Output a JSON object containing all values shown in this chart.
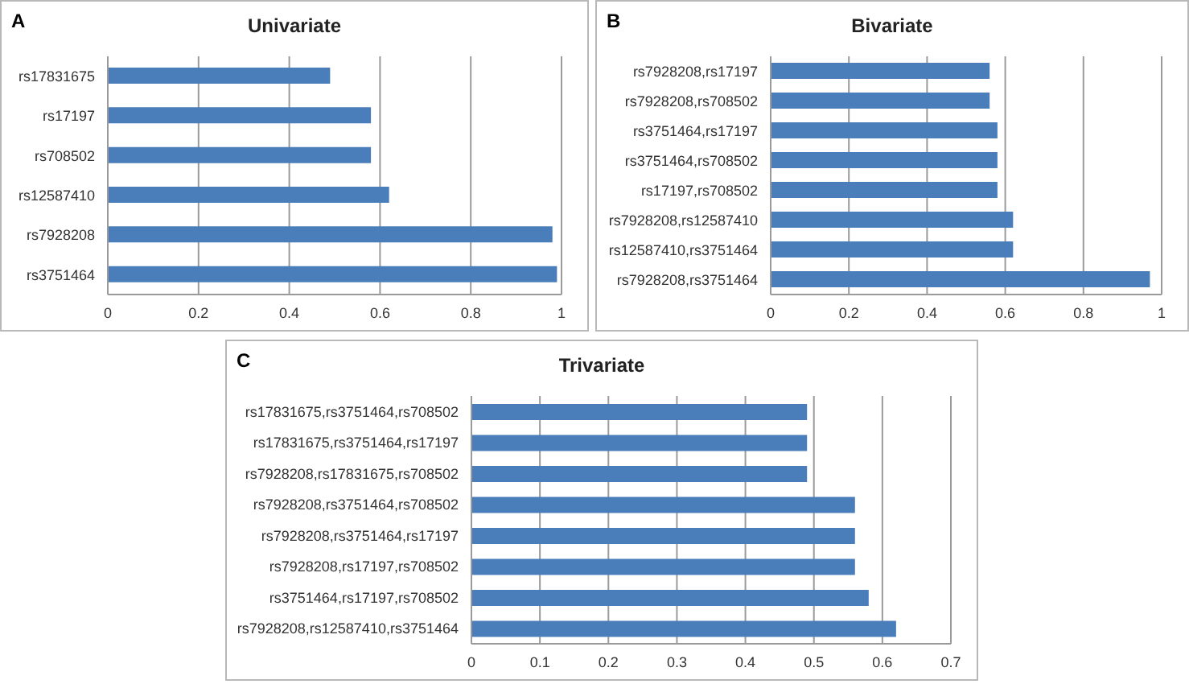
{
  "chart_data": [
    {
      "type": "bar",
      "orientation": "horizontal",
      "title": "Univariate",
      "annotations": [
        "A"
      ],
      "categories": [
        "rs17831675",
        "rs17197",
        "rs708502",
        "rs12587410",
        "rs7928208",
        "rs3751464"
      ],
      "values": [
        0.49,
        0.58,
        0.58,
        0.62,
        0.98,
        0.99
      ],
      "color": "#4a7ebb",
      "xlim": [
        0,
        1
      ],
      "xticks": [
        0,
        0.2,
        0.4,
        0.6,
        0.8,
        1
      ],
      "grid": "x"
    },
    {
      "type": "bar",
      "orientation": "horizontal",
      "title": "Bivariate",
      "annotations": [
        "B"
      ],
      "categories": [
        "rs7928208,rs17197",
        "rs7928208,rs708502",
        "rs3751464,rs17197",
        "rs3751464,rs708502",
        "rs17197,rs708502",
        "rs7928208,rs12587410",
        "rs12587410,rs3751464",
        "rs7928208,rs3751464"
      ],
      "values": [
        0.56,
        0.56,
        0.58,
        0.58,
        0.58,
        0.62,
        0.62,
        0.97
      ],
      "color": "#4a7ebb",
      "xlim": [
        0,
        1
      ],
      "xticks": [
        0,
        0.2,
        0.4,
        0.6,
        0.8,
        1
      ],
      "grid": "x"
    },
    {
      "type": "bar",
      "orientation": "horizontal",
      "title": "Trivariate",
      "annotations": [
        "C"
      ],
      "categories": [
        "rs17831675,rs3751464,rs708502",
        "rs17831675,rs3751464,rs17197",
        "rs7928208,rs17831675,rs708502",
        "rs7928208,rs3751464,rs708502",
        "rs7928208,rs3751464,rs17197",
        "rs7928208,rs17197,rs708502",
        "rs3751464,rs17197,rs708502",
        "rs7928208,rs12587410,rs3751464"
      ],
      "values": [
        0.49,
        0.49,
        0.49,
        0.56,
        0.56,
        0.56,
        0.58,
        0.62
      ],
      "color": "#4a7ebb",
      "xlim": [
        0,
        0.7
      ],
      "xticks": [
        0,
        0.1,
        0.2,
        0.3,
        0.4,
        0.5,
        0.6,
        0.7
      ],
      "grid": "x"
    }
  ]
}
